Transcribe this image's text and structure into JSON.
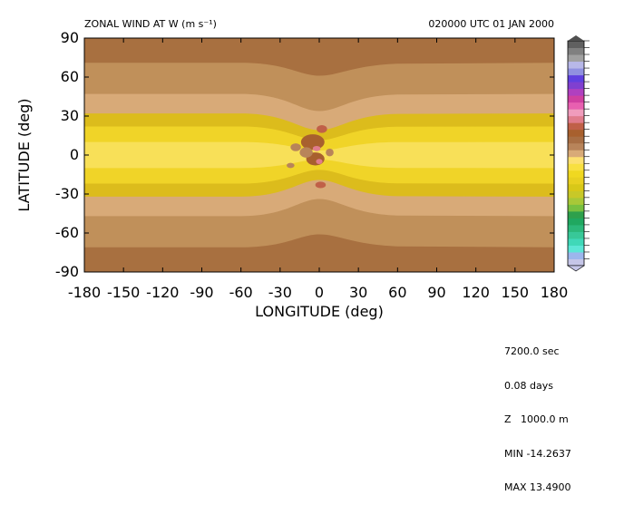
{
  "header": {
    "title": "ZONAL WIND AT W (m s⁻¹)",
    "time": "020000 UTC  01 JAN 2000"
  },
  "info_box": [
    "7200.0 sec",
    "0.08 days",
    "Z   1000.0 m",
    "MIN -14.2637",
    "MAX 13.4900"
  ],
  "chart_data": {
    "type": "heatmap",
    "title": "ZONAL WIND AT W (m s⁻¹)",
    "xlabel": "LONGITUDE (deg)",
    "ylabel": "LATITUDE (deg)",
    "xlim": [
      -180,
      180
    ],
    "ylim": [
      -90,
      90
    ],
    "x_ticks": [
      -180,
      -150,
      -120,
      -90,
      -60,
      -30,
      0,
      30,
      60,
      90,
      120,
      150,
      180
    ],
    "y_ticks": [
      -90,
      -60,
      -30,
      0,
      30,
      60,
      90
    ],
    "x_tick_labels": [
      "-180",
      "-150",
      "-120",
      "-90",
      "-60",
      "-30",
      "0",
      "30",
      "60",
      "90",
      "120",
      "150",
      "180"
    ],
    "y_tick_labels": [
      "-90",
      "-60",
      "-30",
      "0",
      "30",
      "60",
      "90"
    ],
    "min": -14.2637,
    "max": 13.49,
    "zonal_band_values": [
      {
        "lat": 80,
        "value": -2.5
      },
      {
        "lat": 60,
        "value": -1.5
      },
      {
        "lat": 40,
        "value": -0.5
      },
      {
        "lat": 25,
        "value": 0.5
      },
      {
        "lat": 15,
        "value": 1.2
      },
      {
        "lat": 0,
        "value": 2.2
      },
      {
        "lat": -15,
        "value": 1.2
      },
      {
        "lat": -25,
        "value": 0.5
      },
      {
        "lat": -40,
        "value": -0.5
      },
      {
        "lat": -60,
        "value": -1.5
      },
      {
        "lat": -80,
        "value": -2.5
      }
    ],
    "colorbar_colors": [
      "#c6c6e8",
      "#9cb6ec",
      "#5ce6d6",
      "#40d8b8",
      "#38c898",
      "#2cb87a",
      "#20a860",
      "#2ea04c",
      "#78c040",
      "#a8c838",
      "#c8c828",
      "#d8c818",
      "#e8d020",
      "#f0d820",
      "#f8e040",
      "#fce070",
      "#d8aa78",
      "#b8845a",
      "#a86e44",
      "#a8602e",
      "#c06048",
      "#e07c8c",
      "#f09cbc",
      "#e860b0",
      "#d040a0",
      "#b040c0",
      "#8040d0",
      "#6040e0",
      "#9090e0",
      "#b8b8e8",
      "#a0a0a0",
      "#808080",
      "#606060"
    ]
  }
}
